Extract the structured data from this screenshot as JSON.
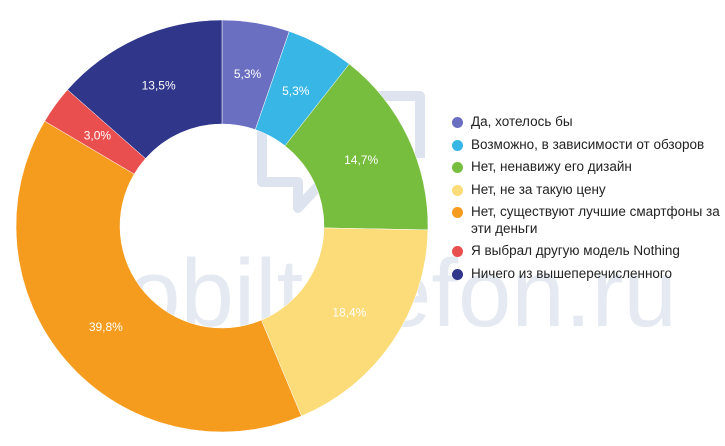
{
  "watermark": {
    "text": "mobiltelefon.ru"
  },
  "chart_data": {
    "type": "pie",
    "variant": "donut",
    "labels": [
      "Да, хотелось бы",
      "Возможно, в зависимости от обзоров",
      "Нет, ненавижу его дизайн",
      "Нет, не за такую цену",
      "Нет, существуют лучшие смартфоны за эти деньги",
      "Я выбрал другую модель Nothing",
      "Ничего из вышеперечисленного"
    ],
    "values": [
      5.3,
      5.3,
      14.7,
      18.4,
      39.8,
      3.0,
      13.5
    ],
    "value_labels": [
      "5,3%",
      "5,3%",
      "14,7%",
      "18,4%",
      "39,8%",
      "3,0%",
      "13,5%"
    ],
    "colors": [
      "#6b6fc2",
      "#38b6e6",
      "#77bd3e",
      "#fcdc78",
      "#f59c1e",
      "#e94f4f",
      "#30368a"
    ],
    "label_colors": [
      "#ffffff",
      "#ffffff",
      "#ffffff",
      "#ffffff",
      "#ffffff",
      "#ffffff",
      "#ffffff"
    ],
    "legend_position": "right",
    "start_angle_deg": 0,
    "direction": "clockwise"
  }
}
